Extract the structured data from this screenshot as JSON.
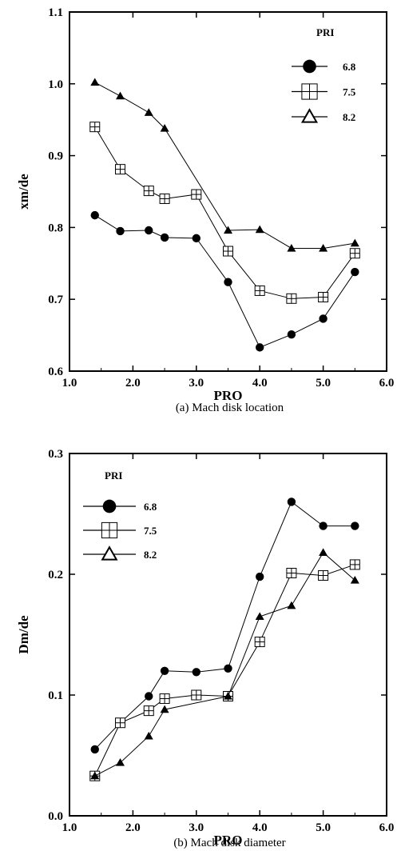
{
  "chart_data": [
    {
      "type": "line",
      "id": "a",
      "caption": "(a)  Mach disk location",
      "xlabel": "PRO",
      "ylabel": "xm/de",
      "xlim": [
        1.0,
        6.0
      ],
      "ylim": [
        0.6,
        1.1
      ],
      "xticks": [
        "1.0",
        "2.0",
        "3.0",
        "4.0",
        "5.0",
        "6.0"
      ],
      "yticks": [
        "0.6",
        "0.7",
        "0.8",
        "0.9",
        "1.0",
        "1.1"
      ],
      "legend_title": "PRI",
      "legend_position": "top-right",
      "series": [
        {
          "name": "6.8",
          "marker": "circle",
          "x": [
            1.4,
            1.8,
            2.25,
            2.5,
            3.0,
            3.5,
            4.0,
            4.5,
            5.0,
            5.5
          ],
          "y": [
            0.817,
            0.795,
            0.796,
            0.786,
            0.785,
            0.724,
            0.633,
            0.651,
            0.673,
            0.738
          ]
        },
        {
          "name": "7.5",
          "marker": "square-cross",
          "x": [
            1.4,
            1.8,
            2.25,
            2.5,
            3.0,
            3.5,
            4.0,
            4.5,
            5.0,
            5.5
          ],
          "y": [
            0.94,
            0.881,
            0.851,
            0.84,
            0.846,
            0.767,
            0.712,
            0.701,
            0.703,
            0.764
          ]
        },
        {
          "name": "8.2",
          "marker": "triangle",
          "x": [
            1.4,
            1.8,
            2.25,
            2.5,
            3.5,
            4.0,
            4.5,
            5.0,
            5.5
          ],
          "y": [
            1.002,
            0.983,
            0.96,
            0.938,
            0.796,
            0.797,
            0.771,
            0.771,
            0.778
          ]
        }
      ]
    },
    {
      "type": "line",
      "id": "b",
      "caption": "(b)  Mach disk diameter",
      "xlabel": "PRO",
      "ylabel": "Dm/de",
      "xlim": [
        1.0,
        6.0
      ],
      "ylim": [
        0.0,
        0.3
      ],
      "xticks": [
        "1.0",
        "2.0",
        "3.0",
        "4.0",
        "5.0",
        "6.0"
      ],
      "yticks": [
        "0.0",
        "0.1",
        "0.2",
        "0.3"
      ],
      "legend_title": "PRI",
      "legend_position": "top-left",
      "series": [
        {
          "name": "6.8",
          "marker": "circle",
          "x": [
            1.4,
            1.8,
            2.25,
            2.5,
            3.0,
            3.5,
            4.0,
            4.5,
            5.0,
            5.5
          ],
          "y": [
            0.055,
            0.077,
            0.099,
            0.12,
            0.119,
            0.122,
            0.198,
            0.26,
            0.24,
            0.24
          ]
        },
        {
          "name": "7.5",
          "marker": "square-cross",
          "x": [
            1.4,
            1.8,
            2.25,
            2.5,
            3.0,
            3.5,
            4.0,
            4.5,
            5.0,
            5.5
          ],
          "y": [
            0.033,
            0.077,
            0.087,
            0.097,
            0.1,
            0.099,
            0.144,
            0.201,
            0.199,
            0.208
          ]
        },
        {
          "name": "8.2",
          "marker": "triangle",
          "x": [
            1.4,
            1.8,
            2.25,
            2.5,
            3.5,
            4.0,
            4.5,
            5.0,
            5.5
          ],
          "y": [
            0.033,
            0.044,
            0.066,
            0.088,
            0.099,
            0.165,
            0.174,
            0.218,
            0.195
          ]
        }
      ]
    }
  ]
}
